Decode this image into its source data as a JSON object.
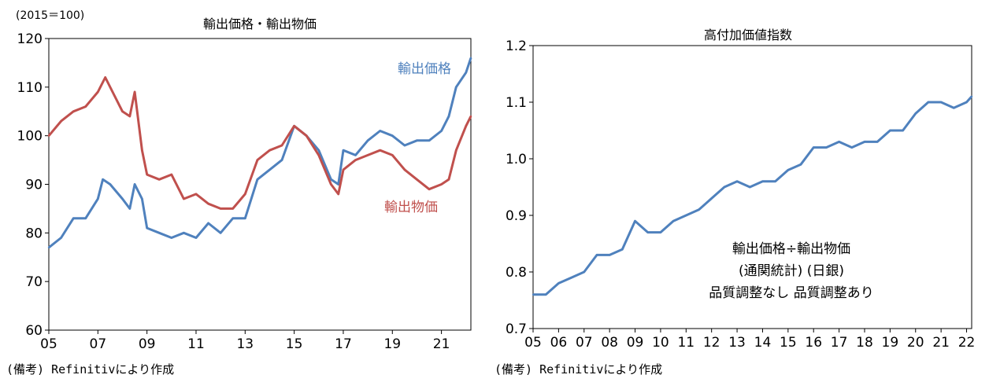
{
  "colors": {
    "export_price": "#4f81bd",
    "export_goods": "#c0504d",
    "axis": "#000000"
  },
  "chart_data": [
    {
      "type": "line",
      "title": "輸出価格・輸出物価",
      "ylabel": "(2015＝100)",
      "ylim": [
        60,
        120
      ],
      "yticks": [
        60,
        70,
        80,
        90,
        100,
        110,
        120
      ],
      "xlim": [
        2005,
        2022.2
      ],
      "xticks": [
        "05",
        "07",
        "09",
        "11",
        "13",
        "15",
        "17",
        "19",
        "21"
      ],
      "note": "(備考) Refinitivにより作成",
      "series": [
        {
          "name": "輸出価格",
          "color": "#4f81bd",
          "x": [
            2005.0,
            2005.5,
            2006.0,
            2006.5,
            2007.0,
            2007.2,
            2007.5,
            2008.0,
            2008.3,
            2008.5,
            2008.8,
            2009.0,
            2009.5,
            2010.0,
            2010.5,
            2011.0,
            2011.5,
            2012.0,
            2012.5,
            2013.0,
            2013.5,
            2014.0,
            2014.5,
            2015.0,
            2015.5,
            2016.0,
            2016.5,
            2016.8,
            2017.0,
            2017.5,
            2018.0,
            2018.5,
            2019.0,
            2019.5,
            2020.0,
            2020.5,
            2021.0,
            2021.3,
            2021.6,
            2022.0,
            2022.2
          ],
          "values": [
            77,
            79,
            83,
            83,
            87,
            91,
            90,
            87,
            85,
            90,
            87,
            81,
            80,
            79,
            80,
            79,
            82,
            80,
            83,
            83,
            91,
            93,
            95,
            102,
            100,
            97,
            91,
            90,
            97,
            96,
            99,
            101,
            100,
            98,
            99,
            99,
            101,
            104,
            110,
            113,
            116
          ]
        },
        {
          "name": "輸出物価",
          "color": "#c0504d",
          "x": [
            2005.0,
            2005.5,
            2006.0,
            2006.5,
            2007.0,
            2007.3,
            2007.6,
            2008.0,
            2008.3,
            2008.5,
            2008.8,
            2009.0,
            2009.5,
            2010.0,
            2010.5,
            2011.0,
            2011.5,
            2012.0,
            2012.5,
            2013.0,
            2013.5,
            2014.0,
            2014.5,
            2015.0,
            2015.5,
            2016.0,
            2016.5,
            2016.8,
            2017.0,
            2017.5,
            2018.0,
            2018.5,
            2019.0,
            2019.5,
            2020.0,
            2020.5,
            2021.0,
            2021.3,
            2021.6,
            2022.0,
            2022.2
          ],
          "values": [
            100,
            103,
            105,
            106,
            109,
            112,
            109,
            105,
            104,
            109,
            97,
            92,
            91,
            92,
            87,
            88,
            86,
            85,
            85,
            88,
            95,
            97,
            98,
            102,
            100,
            96,
            90,
            88,
            93,
            95,
            96,
            97,
            96,
            93,
            91,
            89,
            90,
            91,
            97,
            102,
            104
          ]
        }
      ]
    },
    {
      "type": "line",
      "title": "高付加価値指数",
      "ylim": [
        0.7,
        1.2
      ],
      "yticks": [
        "0.7",
        "0.8",
        "0.9",
        "1.0",
        "1.1",
        "1.2"
      ],
      "xlim": [
        2005,
        2022.2
      ],
      "xticks": [
        "05",
        "06",
        "07",
        "08",
        "09",
        "10",
        "11",
        "12",
        "13",
        "14",
        "15",
        "16",
        "17",
        "18",
        "19",
        "20",
        "21",
        "22"
      ],
      "annotation": [
        "輸出価格÷輸出物価",
        "(通関統計) (日銀)",
        "品質調整なし 品質調整あり"
      ],
      "note": "(備考) Refinitivにより作成",
      "series": [
        {
          "name": "高付加価値指数",
          "color": "#4f81bd",
          "x": [
            2005.0,
            2005.5,
            2006.0,
            2006.5,
            2007.0,
            2007.5,
            2008.0,
            2008.5,
            2009.0,
            2009.5,
            2010.0,
            2010.5,
            2011.0,
            2011.5,
            2012.0,
            2012.5,
            2013.0,
            2013.5,
            2014.0,
            2014.5,
            2015.0,
            2015.5,
            2016.0,
            2016.5,
            2017.0,
            2017.5,
            2018.0,
            2018.5,
            2019.0,
            2019.5,
            2020.0,
            2020.5,
            2021.0,
            2021.5,
            2022.0,
            2022.2
          ],
          "values": [
            0.76,
            0.76,
            0.78,
            0.79,
            0.8,
            0.83,
            0.83,
            0.84,
            0.89,
            0.87,
            0.87,
            0.89,
            0.9,
            0.91,
            0.93,
            0.95,
            0.96,
            0.95,
            0.96,
            0.96,
            0.98,
            0.99,
            1.02,
            1.02,
            1.03,
            1.02,
            1.03,
            1.03,
            1.05,
            1.05,
            1.08,
            1.1,
            1.1,
            1.09,
            1.1,
            1.11
          ]
        }
      ]
    }
  ]
}
